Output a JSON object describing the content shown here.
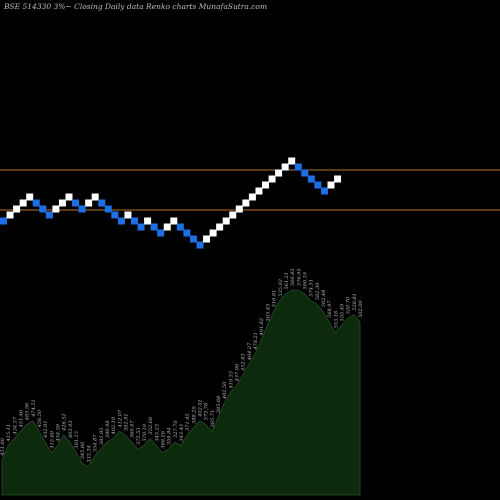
{
  "title": "BSE 514330  3%~  Closing Daily data  Renko  charts MunafaSutra.com",
  "colors": {
    "background": "#000000",
    "up_brick": "#ffffff",
    "down_brick": "#1e6fe6",
    "reference_line": "#b8722c",
    "volume_fill": "#0c2a0c",
    "volume_outline": "#2a4a2a",
    "label_text": "#bdbdbd"
  },
  "chart_data": [
    {
      "type": "renko",
      "brick_size": "3%",
      "directions": [
        "down",
        "up",
        "up",
        "up",
        "up",
        "down",
        "down",
        "down",
        "up",
        "up",
        "up",
        "down",
        "down",
        "up",
        "up",
        "down",
        "down",
        "down",
        "down",
        "up",
        "down",
        "down",
        "up",
        "down",
        "down",
        "up",
        "up",
        "down",
        "down",
        "down",
        "down",
        "up",
        "up",
        "up",
        "up",
        "up",
        "up",
        "up",
        "up",
        "up",
        "up",
        "up",
        "up",
        "up",
        "up",
        "down",
        "down",
        "down",
        "down",
        "down",
        "up",
        "up"
      ],
      "reference_lines": [
        "upper",
        "lower"
      ]
    },
    {
      "type": "area",
      "label_series": [
        "451.60",
        "415.11",
        "434.57",
        "451.46",
        "483.56",
        "474.51",
        "456.50",
        "432.01",
        "415.60",
        "434.39",
        "426.52",
        "403.43",
        "381.15",
        "345.66",
        "333.34",
        "354.87",
        "385.95",
        "390.98",
        "402.19",
        "412.07",
        "382.81",
        "360.47",
        "375.53",
        "370.10",
        "352.68",
        "345.23",
        "368.26",
        "359.84",
        "327.70",
        "343.43",
        "371.45",
        "388.29",
        "402.01",
        "373.78",
        "385.71",
        "385.68",
        "402.50",
        "419.53",
        "437.90",
        "452.83",
        "464.27",
        "478.21",
        "491.82",
        "503.43",
        "516.81",
        "535.92",
        "561.21",
        "566.43",
        "576.95",
        "590.19",
        "574.51",
        "582.39",
        "562.48",
        "568.97",
        "553.18",
        "535.49",
        "520.70",
        "528.81",
        "502.00"
      ],
      "volume_profile": [
        0.1,
        0.14,
        0.16,
        0.18,
        0.2,
        0.21,
        0.18,
        0.15,
        0.12,
        0.14,
        0.17,
        0.15,
        0.12,
        0.09,
        0.08,
        0.11,
        0.13,
        0.15,
        0.16,
        0.18,
        0.17,
        0.15,
        0.13,
        0.14,
        0.16,
        0.14,
        0.12,
        0.13,
        0.15,
        0.14,
        0.17,
        0.19,
        0.21,
        0.2,
        0.18,
        0.22,
        0.26,
        0.29,
        0.31,
        0.34,
        0.37,
        0.4,
        0.44,
        0.48,
        0.52,
        0.55,
        0.57,
        0.58,
        0.58,
        0.57,
        0.55,
        0.54,
        0.52,
        0.49,
        0.46,
        0.48,
        0.5,
        0.51,
        0.49
      ]
    }
  ]
}
